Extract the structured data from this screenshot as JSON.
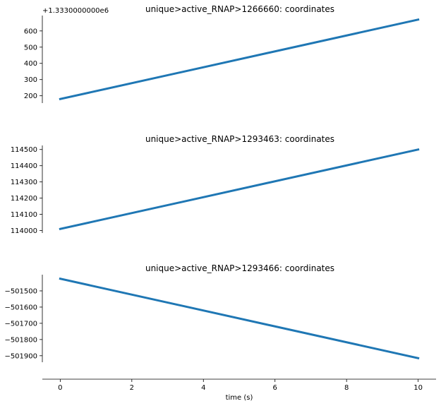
{
  "chart_data": [
    {
      "type": "line",
      "title": "unique>active_RNAP>1266660: coordinates",
      "y_offset_label": "+1.3330000000e6",
      "x": [
        0,
        10
      ],
      "series": [
        {
          "values": [
            180,
            670
          ]
        }
      ],
      "xlim": [
        -0.5,
        10.5
      ],
      "ylim": [
        155,
        695
      ],
      "yticks": [
        200,
        300,
        400,
        500,
        600
      ],
      "ytick_labels": [
        "200",
        "300",
        "400",
        "500",
        "600"
      ],
      "color": "#1f77b4",
      "grid": false
    },
    {
      "type": "line",
      "title": "unique>active_RNAP>1293463: coordinates",
      "x": [
        0,
        10
      ],
      "series": [
        {
          "values": [
            114010,
            114500
          ]
        }
      ],
      "xlim": [
        -0.5,
        10.5
      ],
      "ylim": [
        113985,
        114525
      ],
      "yticks": [
        114000,
        114100,
        114200,
        114300,
        114400,
        114500
      ],
      "ytick_labels": [
        "114000",
        "114100",
        "114200",
        "114300",
        "114400",
        "114500"
      ],
      "color": "#1f77b4",
      "grid": false
    },
    {
      "type": "line",
      "title": "unique>active_RNAP>1293466: coordinates",
      "x": [
        0,
        10
      ],
      "series": [
        {
          "values": [
            -501425,
            -501915
          ]
        }
      ],
      "xlim": [
        -0.5,
        10.5
      ],
      "ylim": [
        -501940,
        -501400
      ],
      "yticks": [
        -501500,
        -501600,
        -501700,
        -501800,
        -501900
      ],
      "ytick_labels": [
        "−501500",
        "−501600",
        "−501700",
        "−501800",
        "−501900"
      ],
      "color": "#1f77b4",
      "grid": false
    }
  ],
  "x_axis": {
    "label": "time (s)",
    "ticks": [
      0,
      2,
      4,
      6,
      8,
      10
    ],
    "tick_labels": [
      "0",
      "2",
      "4",
      "6",
      "8",
      "10"
    ]
  }
}
